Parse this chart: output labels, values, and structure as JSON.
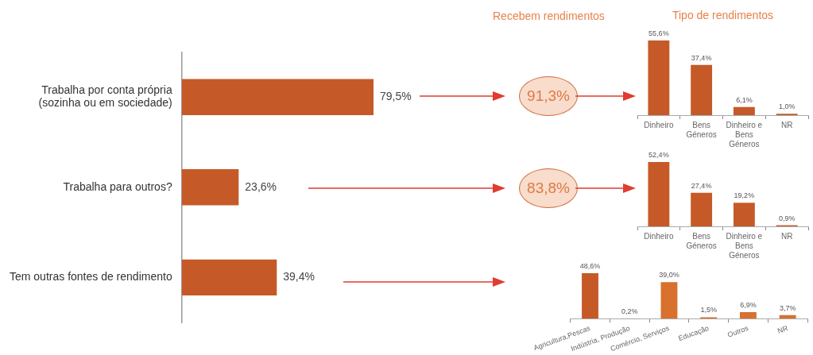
{
  "chart_data": [
    {
      "type": "bar",
      "orientation": "horizontal",
      "categories": [
        "Trabalha por conta própria (sozinha ou em sociedade)",
        "Trabalha para outros?",
        "Tem outras fontes de rendimento"
      ],
      "values": [
        79.5,
        23.6,
        39.4
      ],
      "value_labels": [
        "79,5%",
        "23,6%",
        "39,4%"
      ],
      "color": "#c55a28",
      "tick_labels": "y"
    },
    {
      "type": "other",
      "title": "Recebem rendimentos",
      "categories": [
        null,
        null
      ],
      "values": [
        91.3,
        83.8
      ],
      "value_labels": [
        "91,3%",
        "83,8%"
      ],
      "color": "#f8dccc"
    },
    {
      "type": "bar",
      "title": "Tipo de rendimentos",
      "categories": [
        "Dinheiro",
        "Bens Géneros",
        "Dinheiro e Bens Géneros",
        "NR"
      ],
      "values": [
        55.6,
        37.4,
        6.1,
        1.0
      ],
      "value_labels": [
        "55,6%",
        "37,4%",
        "6,1%",
        "1,0%"
      ],
      "color": "#c55a28",
      "tick_labels": "x"
    },
    {
      "type": "bar",
      "categories": [
        "Dinheiro",
        "Bens Géneros",
        "Dinheiro e Bens Géneros",
        "NR"
      ],
      "values": [
        52.4,
        27.4,
        19.2,
        0.9
      ],
      "value_labels": [
        "52,4%",
        "27,4%",
        "19,2%",
        "0,9%"
      ],
      "color": "#c55a28",
      "tick_labels": "x"
    },
    {
      "type": "bar",
      "categories": [
        "Agricultura,Pescas",
        "Indústria, Produção",
        "Comércio, Serviços",
        "Educação",
        "Outros",
        "NR"
      ],
      "values": [
        48.6,
        0.2,
        39.0,
        1.5,
        6.9,
        3.7
      ],
      "value_labels": [
        "48,6%",
        "0,2%",
        "39,0%",
        "1,5%",
        "6,9%",
        "3,7%"
      ],
      "colors": [
        "#c55a28",
        "#d8702e",
        "#d8702e",
        "#d8702e",
        "#d8702e",
        "#d8702e"
      ],
      "tick_labels": "x"
    }
  ]
}
